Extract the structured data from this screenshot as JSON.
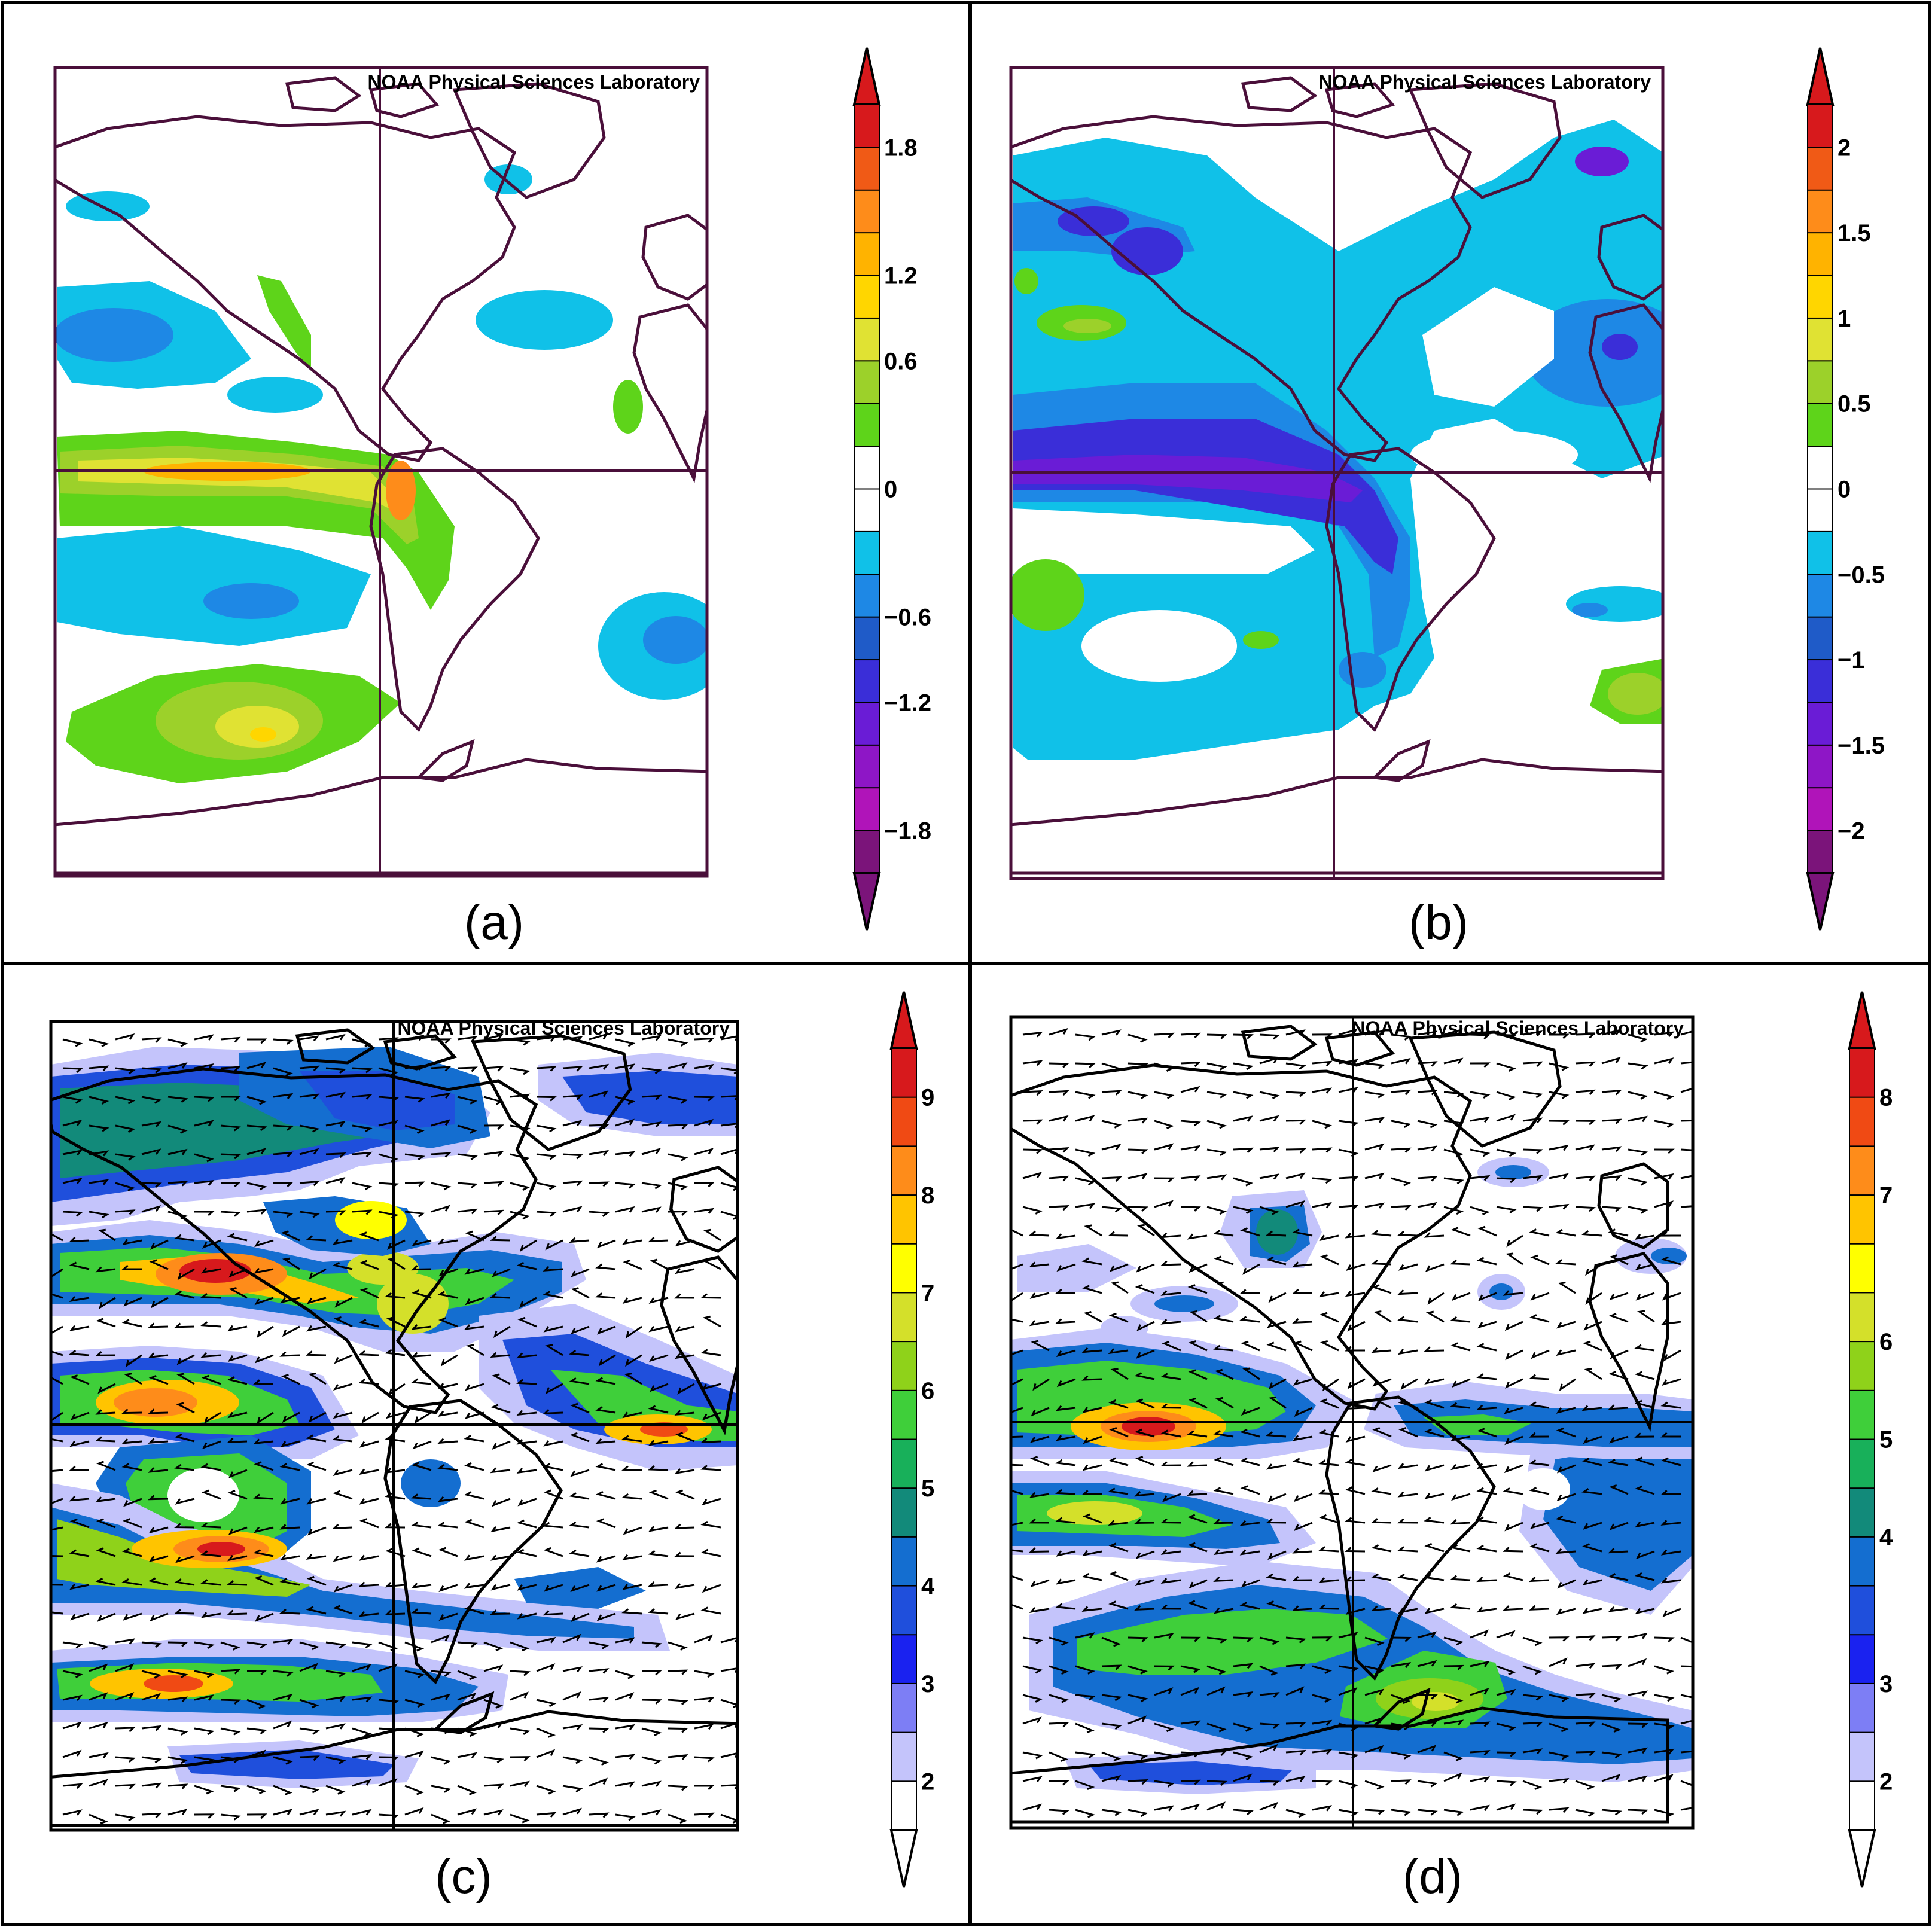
{
  "figure": {
    "credit": "NOAA Physical Sciences Laboratory",
    "panels": [
      {
        "id": "a",
        "label": "(a)",
        "credit": "NOAA Physical Sciences Laboratory",
        "colorbar": {
          "tick_labels": [
            "1.8",
            "1.2",
            "0.6",
            "0",
            "−0.6",
            "−1.2",
            "−1.8"
          ],
          "colors": [
            "#d7191c",
            "#f05a16",
            "#fe8c1a",
            "#ffb300",
            "#ffd600",
            "#e0e233",
            "#9cd12a",
            "#5ed41a",
            "#ffffff",
            "#ffffff",
            "#10c1e8",
            "#1e88e5",
            "#1f5bc8",
            "#3a2ed8",
            "#6a1cd6",
            "#8e16c6",
            "#b014b9",
            "#7b147a"
          ]
        }
      },
      {
        "id": "b",
        "label": "(b)",
        "credit": "NOAA Physical Sciences Laboratory",
        "colorbar": {
          "tick_labels": [
            "2",
            "1.5",
            "1",
            "0.5",
            "0",
            "−0.5",
            "−1",
            "−1.5",
            "−2"
          ],
          "colors": [
            "#d7191c",
            "#f05a16",
            "#fe8c1a",
            "#ffb300",
            "#ffd600",
            "#e0e233",
            "#9cd12a",
            "#5ed41a",
            "#ffffff",
            "#ffffff",
            "#10c1e8",
            "#1e88e5",
            "#1f5bc8",
            "#3a2ed8",
            "#6a1cd6",
            "#8e16c6",
            "#b014b9",
            "#7b147a"
          ]
        }
      },
      {
        "id": "c",
        "label": "(c)",
        "credit": "NOAA Physical Sciences Laboratory",
        "colorbar": {
          "tick_labels": [
            "9",
            "8",
            "7",
            "6",
            "5",
            "4",
            "3",
            "2"
          ],
          "colors": [
            "#d7191c",
            "#f04a14",
            "#fe8c1a",
            "#ffc400",
            "#ffff00",
            "#d4e02a",
            "#8fd21a",
            "#3fcf3a",
            "#18b05a",
            "#128a7a",
            "#146ed0",
            "#1f4fdc",
            "#1a22f0",
            "#7d7ef5",
            "#c4c4fb",
            "#ffffff"
          ]
        }
      },
      {
        "id": "d",
        "label": "(d)",
        "credit": "NOAA Physical Sciences Laboratory",
        "colorbar": {
          "tick_labels": [
            "8",
            "7",
            "6",
            "5",
            "4",
            "3",
            "2"
          ],
          "colors": [
            "#d7191c",
            "#f04a14",
            "#fe8c1a",
            "#ffc400",
            "#ffff00",
            "#d4e02a",
            "#8fd21a",
            "#3fcf3a",
            "#18b05a",
            "#128a7a",
            "#146ed0",
            "#1f4fdc",
            "#1a22f0",
            "#7d7ef5",
            "#c4c4fb",
            "#ffffff"
          ]
        }
      }
    ]
  }
}
